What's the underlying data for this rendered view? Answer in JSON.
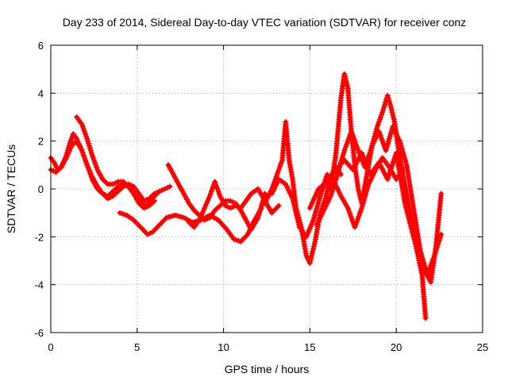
{
  "chart_data": {
    "type": "scatter",
    "title": "Day 233 of 2014, Sidereal Day-to-day VTEC variation (SDTVAR) for receiver conz",
    "xlabel": "GPS time / hours",
    "ylabel": "SDTVAR / TECUs",
    "xlim": [
      0,
      25
    ],
    "ylim": [
      -6,
      6
    ],
    "xticks": [
      0,
      5,
      10,
      15,
      20,
      25
    ],
    "yticks": [
      -6,
      -4,
      -2,
      0,
      2,
      4,
      6
    ],
    "xtick_labels": [
      "0",
      "5",
      "10",
      "15",
      "20",
      "25"
    ],
    "ytick_labels": [
      "-6",
      "-4",
      "-2",
      "0",
      "2",
      "4",
      "6"
    ],
    "grid": true,
    "legend": "none",
    "marker": "+",
    "color": "#ff0000",
    "series": [
      {
        "x": [
          0.0,
          0.2,
          0.4,
          0.6,
          0.9,
          1.1,
          1.3,
          1.5,
          1.8,
          2.1,
          2.4,
          2.7,
          3.0,
          3.3,
          3.6,
          3.9,
          4.2,
          4.5,
          4.8,
          5.1,
          5.4,
          5.7,
          6.0,
          6.3,
          6.6,
          6.9
        ],
        "y": [
          1.3,
          1.1,
          0.8,
          0.9,
          1.4,
          1.9,
          2.3,
          2.1,
          1.6,
          1.0,
          0.5,
          0.1,
          -0.2,
          -0.3,
          -0.1,
          0.1,
          0.2,
          0.1,
          -0.2,
          -0.5,
          -0.7,
          -0.6,
          -0.3,
          -0.1,
          0.0,
          0.1
        ]
      },
      {
        "x": [
          0.0,
          0.3,
          0.6,
          0.9,
          1.2,
          1.5,
          1.8,
          2.1,
          2.4,
          2.7,
          3.0,
          3.3,
          3.6,
          3.9,
          4.2,
          4.5,
          4.8,
          5.1,
          5.4,
          5.7,
          6.0,
          6.3
        ],
        "y": [
          0.8,
          0.7,
          0.9,
          1.3,
          1.8,
          2.0,
          1.6,
          1.0,
          0.4,
          0.0,
          -0.2,
          -0.4,
          -0.3,
          -0.1,
          0.1,
          0.2,
          0.1,
          -0.2,
          -0.5,
          -0.4,
          -0.2,
          -0.1
        ]
      },
      {
        "x": [
          1.5,
          1.8,
          2.1,
          2.4,
          2.7,
          3.0,
          3.3,
          3.6,
          3.9,
          4.2,
          4.5,
          4.8,
          5.1,
          5.4,
          5.7,
          6.0
        ],
        "y": [
          3.0,
          2.7,
          2.1,
          1.4,
          0.8,
          0.4,
          0.2,
          0.2,
          0.3,
          0.3,
          0.1,
          -0.2,
          -0.6,
          -0.8,
          -0.7,
          -0.5
        ]
      },
      {
        "x": [
          4.0,
          4.4,
          4.8,
          5.2,
          5.6,
          5.9,
          6.3,
          6.7,
          7.2,
          7.7,
          8.2,
          8.7,
          9.2,
          9.7,
          10.2,
          10.6,
          11.0,
          11.4,
          11.8,
          12.2
        ],
        "y": [
          -1.0,
          -1.1,
          -1.3,
          -1.6,
          -1.9,
          -1.8,
          -1.5,
          -1.2,
          -1.1,
          -1.2,
          -1.4,
          -1.3,
          -1.1,
          -1.3,
          -1.7,
          -2.1,
          -2.2,
          -1.9,
          -1.3,
          -0.8
        ]
      },
      {
        "x": [
          6.8,
          7.1,
          7.4,
          7.7,
          8.0,
          8.3,
          8.6,
          8.9,
          9.2,
          9.5,
          9.8,
          10.1,
          10.4,
          10.7,
          11.0,
          11.3,
          11.6,
          12.0,
          12.4
        ],
        "y": [
          1.0,
          0.6,
          0.2,
          -0.2,
          -0.6,
          -0.9,
          -1.1,
          -1.3,
          -1.2,
          -0.9,
          -0.7,
          -0.5,
          -0.5,
          -0.6,
          -0.9,
          -1.3,
          -1.7,
          -1.2,
          -0.2
        ]
      },
      {
        "x": [
          8.0,
          8.3,
          8.6,
          8.9,
          9.2,
          9.5,
          9.8,
          10.1,
          10.4,
          10.7,
          11.0,
          11.3,
          11.6,
          12.0,
          12.4,
          12.8,
          13.2
        ],
        "y": [
          -1.4,
          -1.6,
          -1.3,
          -0.8,
          -0.3,
          0.3,
          -0.3,
          -0.7,
          -0.8,
          -0.7,
          -0.8,
          -0.5,
          -0.2,
          0.0,
          -0.5,
          -1.0,
          -0.7
        ]
      },
      {
        "x": [
          12.4,
          12.8,
          13.1,
          13.4,
          13.6,
          13.8,
          14.0,
          14.2,
          14.5,
          14.8,
          15.0,
          15.3,
          15.6,
          15.9,
          16.2,
          16.5,
          16.8
        ],
        "y": [
          -0.6,
          0.0,
          0.6,
          1.2,
          2.8,
          1.2,
          0.4,
          -0.8,
          -1.6,
          -2.8,
          -3.1,
          -2.2,
          -1.0,
          -0.4,
          0.5,
          0.9,
          0.6
        ]
      },
      {
        "x": [
          12.8,
          13.2,
          13.6,
          14.0,
          14.4,
          14.8,
          15.2,
          15.6,
          16.0,
          16.4,
          16.8,
          17.2,
          17.6,
          18.0,
          18.4,
          18.8,
          19.2,
          19.6,
          20.0,
          20.4
        ],
        "y": [
          -0.2,
          0.4,
          0.2,
          -0.4,
          -1.6,
          -2.0,
          -1.3,
          -0.3,
          0.6,
          0.3,
          -0.3,
          -0.8,
          -1.6,
          -0.8,
          0.2,
          0.8,
          1.3,
          0.9,
          0.4,
          0.8
        ]
      },
      {
        "x": [
          16.2,
          16.5,
          16.8,
          17.0,
          17.2,
          17.4,
          17.6,
          17.8,
          18.0,
          18.3,
          18.6,
          18.9,
          19.2,
          19.5,
          19.7,
          19.9,
          20.1,
          20.3,
          20.6,
          20.9,
          21.2,
          21.5,
          21.7
        ],
        "y": [
          0.0,
          1.4,
          3.8,
          4.8,
          4.2,
          2.4,
          1.0,
          0.0,
          -0.6,
          0.6,
          1.8,
          2.6,
          3.2,
          3.9,
          3.4,
          2.8,
          1.8,
          1.0,
          -0.2,
          -1.4,
          -2.6,
          -3.6,
          -5.4
        ]
      },
      {
        "x": [
          15.4,
          15.8,
          16.2,
          16.6,
          17.0,
          17.4,
          17.8,
          18.2,
          18.6,
          19.0,
          19.4,
          19.8,
          20.2,
          20.6,
          21.0,
          21.4,
          21.8,
          22.2,
          22.6
        ],
        "y": [
          -1.5,
          -0.9,
          -0.3,
          0.6,
          1.6,
          2.4,
          1.6,
          0.9,
          1.8,
          2.4,
          1.6,
          2.6,
          2.0,
          1.0,
          -0.8,
          -2.6,
          -3.6,
          -2.8,
          -1.9
        ]
      },
      {
        "x": [
          15.0,
          15.5,
          16.0,
          16.5,
          17.0,
          17.5,
          18.0,
          18.5,
          19.0,
          19.5,
          20.0,
          20.5,
          21.0,
          21.5,
          22.0,
          22.3,
          22.6
        ],
        "y": [
          -0.8,
          0.0,
          0.3,
          0.8,
          1.2,
          0.8,
          1.5,
          0.6,
          1.1,
          0.4,
          1.5,
          -0.6,
          -2.0,
          -3.2,
          -3.9,
          -2.4,
          -0.2
        ]
      }
    ]
  }
}
